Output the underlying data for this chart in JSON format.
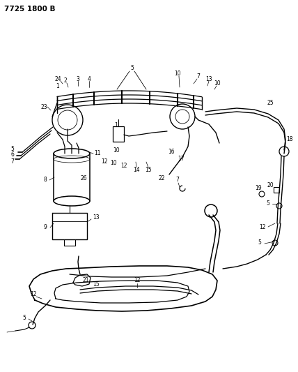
{
  "title": "7725 1800 B",
  "bg_color": "#ffffff",
  "line_color": "#000000",
  "fig_width": 4.28,
  "fig_height": 5.33,
  "dpi": 100,
  "xlim": [
    0,
    428
  ],
  "ylim": [
    533,
    0
  ]
}
